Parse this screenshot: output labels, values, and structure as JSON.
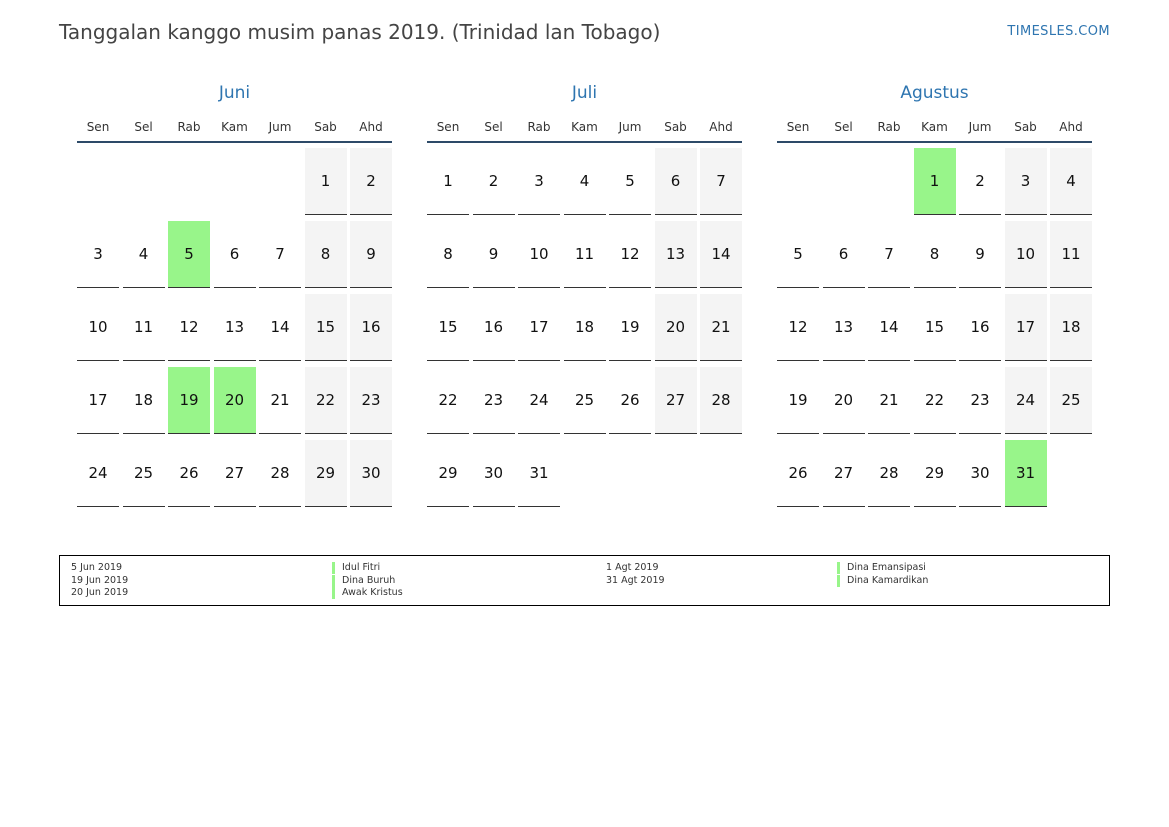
{
  "header": {
    "title": "Tanggalan kanggo musim panas 2019. (Trinidad lan Tobago)",
    "brand": "TIMESLES.COM"
  },
  "weekdays": [
    "Sen",
    "Sel",
    "Rab",
    "Kam",
    "Jum",
    "Sab",
    "Ahd"
  ],
  "colors": {
    "accent": "#2e75b0",
    "holiday": "#98f58a",
    "weekend": "#f4f4f4"
  },
  "months": [
    {
      "name": "Juni",
      "start_weekday": 5,
      "days": 30,
      "holidays": [
        5,
        19,
        20
      ]
    },
    {
      "name": "Juli",
      "start_weekday": 0,
      "days": 31,
      "holidays": []
    },
    {
      "name": "Agustus",
      "start_weekday": 3,
      "days": 31,
      "holidays": [
        1,
        31
      ]
    }
  ],
  "legend": [
    {
      "dates": [
        "5 Jun 2019",
        "19 Jun 2019",
        "20 Jun 2019"
      ],
      "names": [
        "Idul Fitri",
        "Dina Buruh",
        "Awak Kristus"
      ]
    },
    {
      "dates": [
        "1 Agt 2019",
        "31 Agt 2019"
      ],
      "names": [
        "Dina Emansipasi",
        "Dina Kamardikan"
      ]
    }
  ]
}
